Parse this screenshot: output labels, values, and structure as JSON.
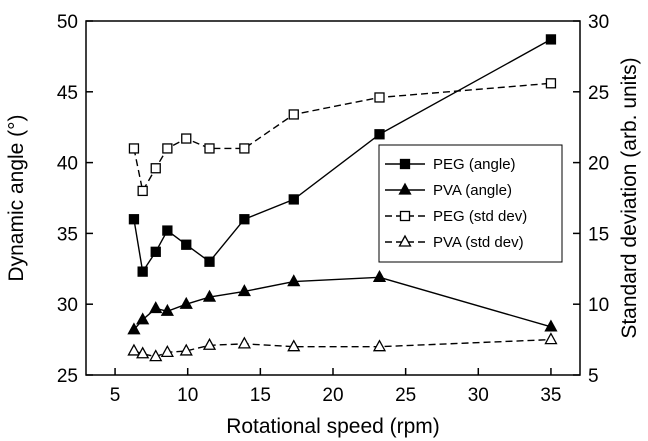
{
  "chart_data": {
    "type": "line",
    "xlabel": "Rotational speed (rpm)",
    "ylabel": "Dynamic angle (°)",
    "y2label": "Standard deviation (arb. units)",
    "xlim": [
      3,
      37
    ],
    "ylim": [
      25,
      50
    ],
    "y2lim": [
      5,
      30
    ],
    "xticks": [
      "5",
      "10",
      "15",
      "20",
      "25",
      "30",
      "35"
    ],
    "yticks": [
      "25",
      "30",
      "35",
      "40",
      "45",
      "50"
    ],
    "y2ticks": [
      "5",
      "10",
      "15",
      "20",
      "25",
      "30"
    ],
    "grid": false,
    "legend_position": "center-right",
    "series": [
      {
        "name": "PEG (angle)",
        "axis": "left",
        "marker": "square",
        "filled": true,
        "dashed": false,
        "x": [
          6.3,
          6.9,
          7.8,
          8.6,
          9.9,
          11.5,
          13.9,
          17.3,
          23.2,
          35.0
        ],
        "y": [
          36.0,
          32.3,
          33.7,
          35.2,
          34.2,
          33.0,
          36.0,
          37.4,
          42.0,
          48.7
        ]
      },
      {
        "name": "PVA (angle)",
        "axis": "left",
        "marker": "triangle",
        "filled": true,
        "dashed": false,
        "x": [
          6.3,
          6.9,
          7.8,
          8.6,
          9.9,
          11.5,
          13.9,
          17.3,
          23.2,
          35.0
        ],
        "y": [
          28.2,
          28.9,
          29.7,
          29.5,
          30.0,
          30.5,
          30.9,
          31.6,
          31.9,
          28.4
        ]
      },
      {
        "name": "PEG (std dev)",
        "axis": "right",
        "marker": "square",
        "filled": false,
        "dashed": true,
        "x": [
          6.3,
          6.9,
          7.8,
          8.6,
          9.9,
          11.5,
          13.9,
          17.3,
          23.2,
          35.0
        ],
        "y": [
          21.0,
          18.0,
          19.6,
          21.0,
          21.7,
          21.0,
          21.0,
          23.4,
          24.6,
          25.6
        ]
      },
      {
        "name": "PVA (std dev)",
        "axis": "right",
        "marker": "triangle",
        "filled": false,
        "dashed": true,
        "x": [
          6.3,
          6.9,
          7.8,
          8.6,
          9.9,
          11.5,
          13.9,
          17.3,
          23.2,
          35.0
        ],
        "y": [
          6.7,
          6.5,
          6.3,
          6.6,
          6.7,
          7.1,
          7.2,
          7.0,
          7.0,
          7.5
        ]
      }
    ]
  }
}
